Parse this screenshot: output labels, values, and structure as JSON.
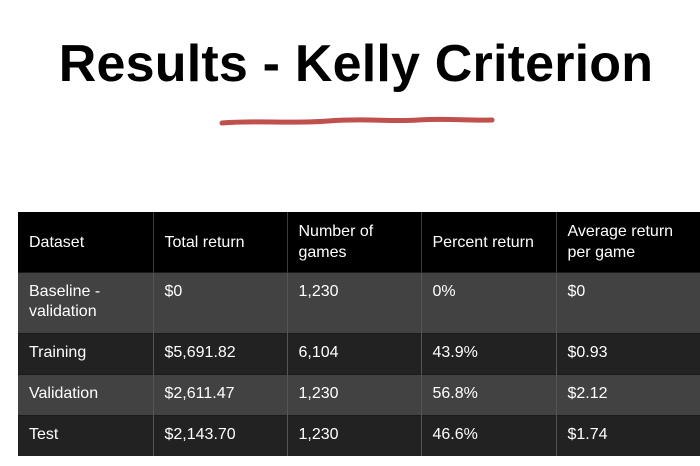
{
  "slide": {
    "title": "Results - Kelly Criterion",
    "accent_color": "#c0504d"
  },
  "table": {
    "headers": [
      "Dataset",
      "Total return",
      "Number of games",
      "Percent return",
      "Average return per game"
    ],
    "rows": [
      {
        "dataset": "Baseline - validation",
        "total_return": "$0",
        "games": "1,230",
        "percent_return": "0%",
        "avg_return": "$0"
      },
      {
        "dataset": "Training",
        "total_return": "$5,691.82",
        "games": "6,104",
        "percent_return": "43.9%",
        "avg_return": "$0.93"
      },
      {
        "dataset": "Validation",
        "total_return": "$2,611.47",
        "games": "1,230",
        "percent_return": "56.8%",
        "avg_return": "$2.12"
      },
      {
        "dataset": "Test",
        "total_return": "$2,143.70",
        "games": "1,230",
        "percent_return": "46.6%",
        "avg_return": "$1.74"
      }
    ],
    "colors": {
      "header_bg": "#000000",
      "row_light_bg": "#424242",
      "row_dark_bg": "#222222",
      "text": "#ffffff"
    }
  }
}
